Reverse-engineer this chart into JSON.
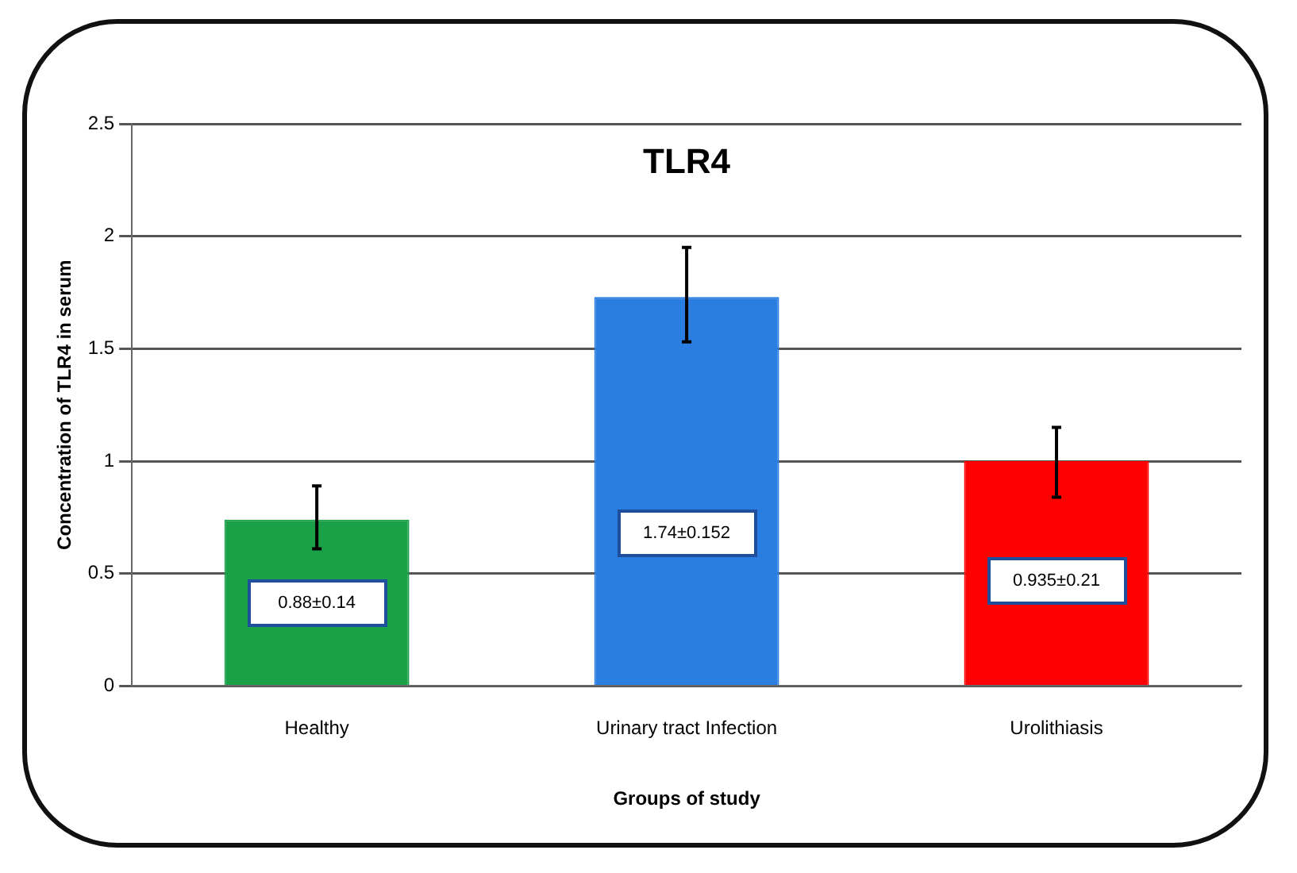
{
  "chart_data": {
    "type": "bar",
    "title": "TLR4",
    "xlabel": "Groups of study",
    "ylabel": "Concentration of TLR4 in serum",
    "categories": [
      "Healthy",
      "Urinary tract Infection",
      "Urolithiasis"
    ],
    "values": [
      0.74,
      1.73,
      1.0
    ],
    "colors": [
      "#1aa046",
      "#2a7de1",
      "#ff0000"
    ],
    "errors": [
      [
        0.61,
        0.89
      ],
      [
        1.53,
        1.95
      ],
      [
        0.84,
        1.15
      ]
    ],
    "ylim": [
      0,
      2.5
    ],
    "yticks": [
      0,
      0.5,
      1,
      1.5,
      2,
      2.5
    ],
    "grid": "y",
    "legend": false,
    "annotations": [
      "0.88±0.14",
      "1.74±0.152",
      "0.935±0.21"
    ]
  }
}
